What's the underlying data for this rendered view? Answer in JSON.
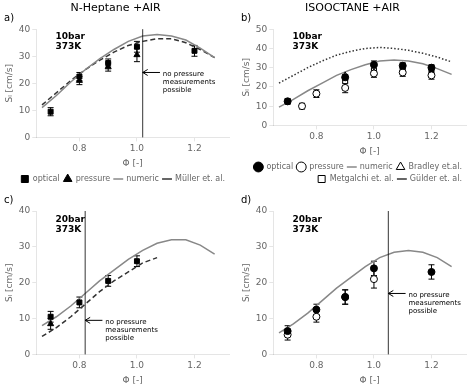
{
  "chart_data": [
    {
      "type": "scatter",
      "title": "N-Heptane +AIR",
      "xlabel": "Φ [-]",
      "ylabel": "Sₗ [cm/s]",
      "xlim": [
        0.65,
        1.32
      ],
      "ylim": [
        0,
        40
      ],
      "xticks": [
        0.8,
        {
          "value": 1.0,
          "label": "1.0"
        },
        1.2
      ],
      "yticks": [
        0,
        10,
        20,
        30,
        40
      ],
      "grid": false,
      "legend": "lower right",
      "annotations": [
        {
          "text": "a)"
        },
        {
          "text": "10bar\n373K"
        },
        {
          "text": "no pressure\nmeasurements\npossible",
          "x": 1.09,
          "y": 24.5,
          "vline_x": 1.02,
          "arrow": {
            "from_x": 1.08,
            "to_x": 1.02,
            "y": 24.0
          }
        }
      ],
      "series": [
        {
          "name": "optical",
          "type": "scatter",
          "marker": "square",
          "color": "black",
          "x": [
            0.7,
            0.8,
            0.9,
            1.0,
            1.2
          ],
          "values": [
            9.5,
            22.5,
            27.5,
            33.5,
            32.0
          ],
          "errors": [
            1.5,
            1.5,
            1.5,
            2.0,
            2.0
          ]
        },
        {
          "name": "pressure",
          "type": "scatter",
          "marker": "triangle",
          "color": "black",
          "x": [
            0.8,
            0.9,
            1.0
          ],
          "values": [
            21.0,
            26.0,
            30.5
          ],
          "errors": [
            1.5,
            1.5,
            2.5
          ]
        },
        {
          "name": "numeric",
          "type": "line",
          "line_style": "solid",
          "color": "#888888",
          "x": [
            0.67,
            0.72,
            0.77,
            0.82,
            0.87,
            0.92,
            0.97,
            1.02,
            1.07,
            1.12,
            1.17,
            1.22,
            1.27
          ],
          "values": [
            11.0,
            15.5,
            20.5,
            25.0,
            29.0,
            32.5,
            35.5,
            37.5,
            38.0,
            37.5,
            36.0,
            33.0,
            29.5
          ]
        },
        {
          "name": "Müller et. al.",
          "type": "line",
          "line_style": "dashed",
          "color": "#333333",
          "x": [
            0.67,
            0.72,
            0.77,
            0.82,
            0.87,
            0.92,
            0.97,
            1.02,
            1.07,
            1.12,
            1.17,
            1.22,
            1.27
          ],
          "values": [
            12.0,
            16.5,
            21.0,
            25.0,
            28.5,
            31.5,
            34.0,
            35.5,
            36.5,
            36.5,
            35.0,
            32.5,
            29.5
          ]
        }
      ]
    },
    {
      "type": "scatter",
      "title": "ISOOCTANE +AIR",
      "xlabel": "Φ [-]",
      "ylabel": "Sₗ [cm/s]",
      "xlim": [
        0.65,
        1.32
      ],
      "ylim": [
        0,
        50
      ],
      "xticks": [
        0.8,
        {
          "value": 1.0,
          "label": "1.0"
        },
        1.2
      ],
      "yticks": [
        0,
        10,
        20,
        30,
        40,
        50
      ],
      "grid": false,
      "legend": "lower right",
      "annotations": [
        {
          "text": "b)"
        },
        {
          "text": "10bar\n373K"
        }
      ],
      "series": [
        {
          "name": "optical",
          "type": "scatter",
          "marker": "circle",
          "color": "black",
          "x": [
            0.7,
            0.9,
            1.0,
            1.1,
            1.2
          ],
          "values": [
            12.5,
            25.0,
            31.5,
            31.0,
            30.0
          ],
          "errors": [
            1.5,
            1.5,
            2.0,
            1.5,
            1.5
          ]
        },
        {
          "name": "pressure",
          "type": "scatter",
          "marker": "circle-open",
          "color": "black",
          "x": [
            0.75,
            0.8,
            0.9,
            1.0,
            1.1,
            1.2
          ],
          "values": [
            10.0,
            16.5,
            19.5,
            27.0,
            27.5,
            26.0
          ],
          "errors": [
            1.5,
            2.0,
            2.5,
            2.0,
            2.0,
            2.0
          ]
        },
        {
          "name": "numeric",
          "type": "line",
          "line_style": "solid",
          "color": "#888888",
          "x": [
            0.67,
            0.72,
            0.77,
            0.82,
            0.87,
            0.92,
            0.97,
            1.02,
            1.07,
            1.12,
            1.17,
            1.22,
            1.27
          ],
          "values": [
            9.5,
            13.5,
            18.0,
            22.0,
            26.0,
            29.0,
            31.5,
            33.5,
            34.0,
            33.5,
            32.0,
            29.5,
            26.5
          ]
        },
        {
          "name": "Bradley et.al.",
          "type": "scatter",
          "marker": "triangle-open",
          "color": "black",
          "x": [
            0.9,
            1.0,
            1.1
          ],
          "values": [
            26.0,
            27.5,
            29.0
          ]
        },
        {
          "name": "Metgalchi et. al.",
          "type": "scatter",
          "marker": "square-open",
          "color": "black",
          "x": [
            0.9,
            1.0,
            1.1,
            1.2
          ],
          "values": [
            23.0,
            28.5,
            28.0,
            26.5
          ]
        },
        {
          "name": "Gülder et. al.",
          "type": "line",
          "line_style": "dotted",
          "color": "#333333",
          "x": [
            0.67,
            0.72,
            0.77,
            0.82,
            0.87,
            0.92,
            0.97,
            1.02,
            1.07,
            1.12,
            1.17,
            1.22,
            1.27
          ],
          "values": [
            22.0,
            26.0,
            30.0,
            33.5,
            36.5,
            38.5,
            40.0,
            40.5,
            40.0,
            39.0,
            37.5,
            35.5,
            33.0
          ]
        }
      ]
    },
    {
      "type": "scatter",
      "xlabel": "Φ [-]",
      "ylabel": "Sₗ [cm/s]",
      "xlim": [
        0.65,
        1.32
      ],
      "ylim": [
        0,
        40
      ],
      "xticks": [
        0.8,
        {
          "value": 1.0,
          "label": "1.0"
        },
        1.2
      ],
      "yticks": [
        0,
        10,
        20,
        30,
        40
      ],
      "grid": false,
      "annotations": [
        {
          "text": "c)"
        },
        {
          "text": "20bar\n373K"
        },
        {
          "text": "no pressure\nmeasurements\npossible",
          "x": 0.89,
          "y": 10.0,
          "vline_x": 0.82,
          "arrow": {
            "from_x": 0.88,
            "to_x": 0.82,
            "y": 9.5
          }
        }
      ],
      "series": [
        {
          "type": "scatter",
          "marker": "square",
          "color": "black",
          "x": [
            0.7,
            0.8,
            0.9,
            1.0
          ],
          "values": [
            10.5,
            14.5,
            20.5,
            26.0
          ],
          "errors": [
            1.5,
            1.5,
            1.5,
            1.5
          ]
        },
        {
          "type": "scatter",
          "marker": "triangle",
          "color": "black",
          "x": [
            0.7
          ],
          "values": [
            8.5
          ],
          "errors": [
            1.5
          ]
        },
        {
          "type": "line",
          "line_style": "solid",
          "color": "#888888",
          "x": [
            0.67,
            0.72,
            0.77,
            0.82,
            0.87,
            0.92,
            0.97,
            1.02,
            1.07,
            1.12,
            1.17,
            1.22,
            1.27
          ],
          "values": [
            8.0,
            10.5,
            13.5,
            17.0,
            20.5,
            23.5,
            26.5,
            29.0,
            31.0,
            32.0,
            32.0,
            30.5,
            28.0
          ]
        },
        {
          "type": "line",
          "line_style": "dashed",
          "color": "#333333",
          "x": [
            0.67,
            0.72,
            0.77,
            0.82,
            0.87,
            0.92,
            0.97,
            1.02,
            1.07
          ],
          "values": [
            5.0,
            7.5,
            10.5,
            14.0,
            17.5,
            20.5,
            23.0,
            25.5,
            27.0
          ]
        }
      ]
    },
    {
      "type": "scatter",
      "xlabel": "Φ [-]",
      "ylabel": "Sₗ [cm/s]",
      "xlim": [
        0.65,
        1.32
      ],
      "ylim": [
        0,
        40
      ],
      "xticks": [
        0.8,
        {
          "value": 1.0,
          "label": "1.0"
        },
        1.2
      ],
      "yticks": [
        0,
        10,
        20,
        30,
        40
      ],
      "grid": false,
      "annotations": [
        {
          "text": "d)"
        },
        {
          "text": "20bar\n373K"
        },
        {
          "text": "no pressure\nmeasurements\npossible",
          "x": 1.12,
          "y": 17.5,
          "vline_x": 1.05,
          "arrow": {
            "from_x": 1.11,
            "to_x": 1.05,
            "y": 17.0
          }
        }
      ],
      "series": [
        {
          "type": "scatter",
          "marker": "circle",
          "color": "black",
          "x": [
            0.7,
            0.8,
            0.9,
            1.0,
            1.2
          ],
          "values": [
            6.5,
            12.5,
            16.0,
            24.0,
            23.0
          ],
          "errors": [
            1.5,
            1.5,
            2.0,
            2.0,
            2.0
          ]
        },
        {
          "type": "scatter",
          "marker": "circle-open",
          "color": "black",
          "x": [
            0.7,
            0.8,
            0.9,
            1.0
          ],
          "values": [
            5.5,
            10.5,
            16.0,
            21.0
          ],
          "errors": [
            1.5,
            1.5,
            2.0,
            2.5
          ]
        },
        {
          "type": "line",
          "line_style": "solid",
          "color": "#888888",
          "x": [
            0.67,
            0.72,
            0.77,
            0.82,
            0.87,
            0.92,
            0.97,
            1.02,
            1.07,
            1.12,
            1.17,
            1.22,
            1.27
          ],
          "values": [
            6.0,
            8.5,
            11.5,
            15.0,
            18.5,
            21.5,
            24.5,
            27.0,
            28.5,
            29.0,
            28.5,
            27.0,
            24.5
          ]
        }
      ]
    }
  ]
}
